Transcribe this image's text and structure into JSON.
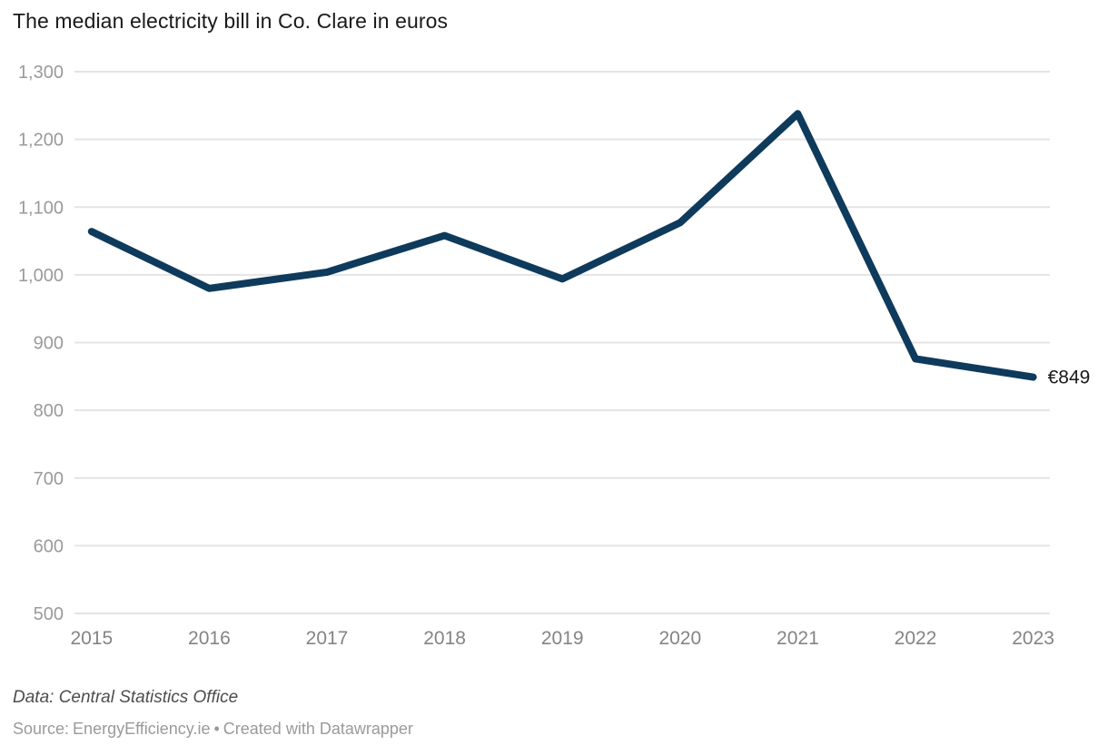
{
  "title": "The median electricity bill in Co. Clare in euros",
  "chart_data": {
    "type": "line",
    "x": [
      "2015",
      "2016",
      "2017",
      "2018",
      "2019",
      "2020",
      "2021",
      "2022",
      "2023"
    ],
    "series": [
      {
        "name": "Median electricity bill in Co. Clare (euros)",
        "values": [
          1064,
          980,
          1004,
          1058,
          994,
          1077,
          1238,
          876,
          849
        ]
      }
    ],
    "end_label": "€849",
    "ylim": [
      500,
      1300
    ],
    "yticks": [
      500,
      600,
      700,
      800,
      900,
      1000,
      1100,
      1200,
      1300
    ],
    "xlabel": "",
    "ylabel": "",
    "grid": true,
    "legend": "none",
    "colors": {
      "line": "#0e3a5c",
      "grid": "#e4e4e4",
      "y_tick_label": "#9a9a9a",
      "x_tick_label": "#848484",
      "end_label": "#1a1a1a"
    }
  },
  "footer": {
    "data_note": "Data: Central Statistics Office",
    "source_prefix": "Source:",
    "source_name": "EnergyEfficiency.ie",
    "separator": "•",
    "created_with": "Created with Datawrapper"
  }
}
